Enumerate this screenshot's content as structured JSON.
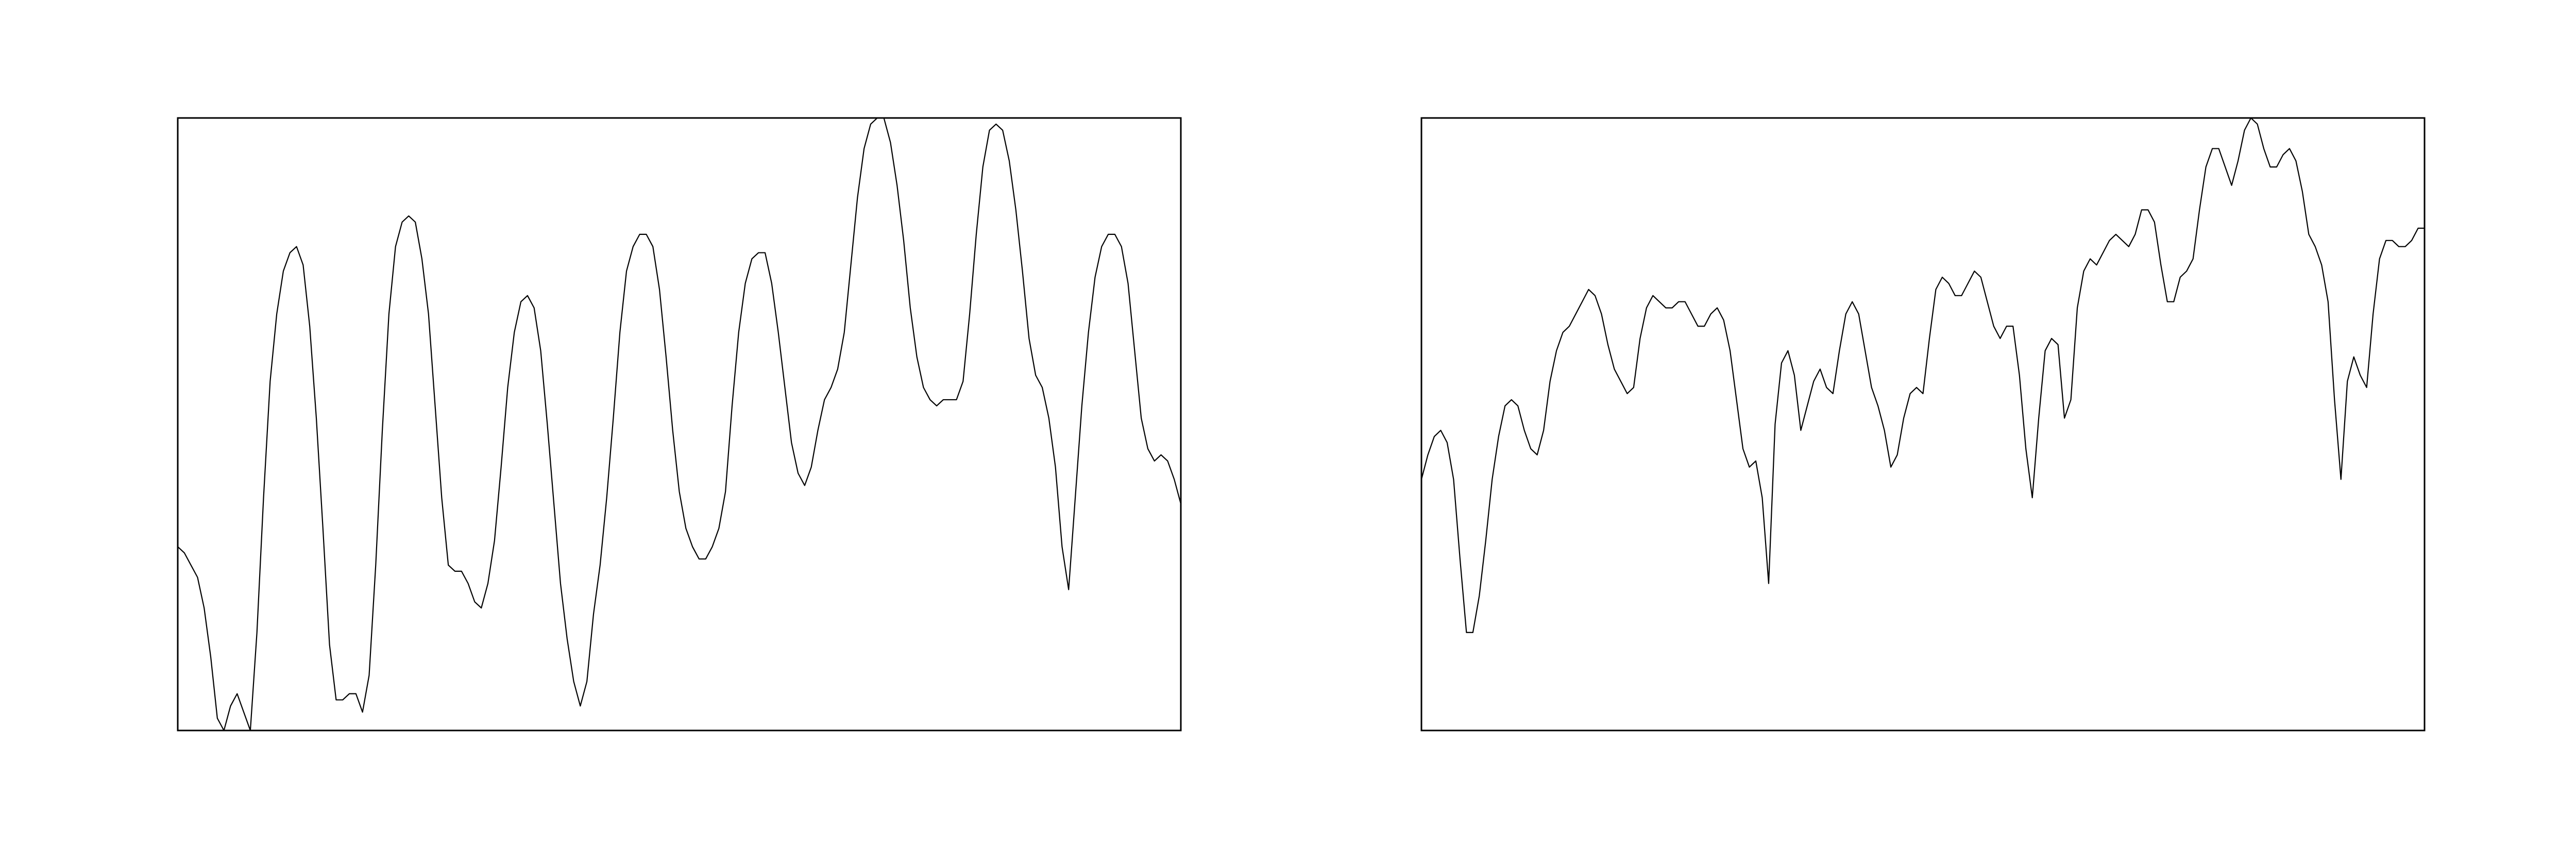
{
  "chart_data": [
    {
      "type": "line",
      "color": "#000000",
      "ylim": [
        0,
        1
      ],
      "values": [
        0.3,
        0.29,
        0.27,
        0.25,
        0.2,
        0.12,
        0.02,
        0.0,
        0.04,
        0.06,
        0.03,
        0.0,
        0.16,
        0.38,
        0.57,
        0.68,
        0.75,
        0.78,
        0.79,
        0.76,
        0.66,
        0.51,
        0.33,
        0.14,
        0.05,
        0.05,
        0.06,
        0.06,
        0.03,
        0.09,
        0.27,
        0.49,
        0.68,
        0.79,
        0.83,
        0.84,
        0.83,
        0.77,
        0.68,
        0.53,
        0.38,
        0.27,
        0.26,
        0.26,
        0.24,
        0.21,
        0.2,
        0.24,
        0.31,
        0.43,
        0.56,
        0.65,
        0.7,
        0.71,
        0.69,
        0.62,
        0.5,
        0.37,
        0.24,
        0.15,
        0.08,
        0.04,
        0.08,
        0.19,
        0.27,
        0.38,
        0.51,
        0.65,
        0.75,
        0.79,
        0.81,
        0.81,
        0.79,
        0.72,
        0.61,
        0.49,
        0.39,
        0.33,
        0.3,
        0.28,
        0.28,
        0.3,
        0.33,
        0.39,
        0.53,
        0.65,
        0.73,
        0.77,
        0.78,
        0.78,
        0.73,
        0.65,
        0.56,
        0.47,
        0.42,
        0.4,
        0.43,
        0.49,
        0.54,
        0.56,
        0.59,
        0.65,
        0.76,
        0.87,
        0.95,
        0.99,
        1.0,
        1.0,
        0.96,
        0.89,
        0.8,
        0.69,
        0.61,
        0.56,
        0.54,
        0.53,
        0.54,
        0.54,
        0.54,
        0.57,
        0.68,
        0.81,
        0.92,
        0.98,
        0.99,
        0.98,
        0.93,
        0.85,
        0.75,
        0.64,
        0.58,
        0.56,
        0.51,
        0.43,
        0.3,
        0.23,
        0.38,
        0.53,
        0.65,
        0.74,
        0.79,
        0.81,
        0.81,
        0.79,
        0.73,
        0.62,
        0.51,
        0.46,
        0.44,
        0.45,
        0.44,
        0.41,
        0.37
      ]
    },
    {
      "type": "line",
      "color": "#000000",
      "ylim": [
        0,
        1
      ],
      "values": [
        0.41,
        0.45,
        0.48,
        0.49,
        0.47,
        0.41,
        0.28,
        0.16,
        0.16,
        0.22,
        0.31,
        0.41,
        0.48,
        0.53,
        0.54,
        0.53,
        0.49,
        0.46,
        0.45,
        0.49,
        0.57,
        0.62,
        0.65,
        0.66,
        0.68,
        0.7,
        0.72,
        0.71,
        0.68,
        0.63,
        0.59,
        0.57,
        0.55,
        0.56,
        0.64,
        0.69,
        0.71,
        0.7,
        0.69,
        0.69,
        0.7,
        0.7,
        0.68,
        0.66,
        0.66,
        0.68,
        0.69,
        0.67,
        0.62,
        0.54,
        0.46,
        0.43,
        0.44,
        0.38,
        0.24,
        0.5,
        0.6,
        0.62,
        0.58,
        0.49,
        0.53,
        0.57,
        0.59,
        0.56,
        0.55,
        0.62,
        0.68,
        0.7,
        0.68,
        0.62,
        0.56,
        0.53,
        0.49,
        0.43,
        0.45,
        0.51,
        0.55,
        0.56,
        0.55,
        0.64,
        0.72,
        0.74,
        0.73,
        0.71,
        0.71,
        0.73,
        0.75,
        0.74,
        0.7,
        0.66,
        0.64,
        0.66,
        0.66,
        0.58,
        0.46,
        0.38,
        0.51,
        0.62,
        0.64,
        0.63,
        0.51,
        0.54,
        0.69,
        0.75,
        0.77,
        0.76,
        0.78,
        0.8,
        0.81,
        0.8,
        0.79,
        0.81,
        0.85,
        0.85,
        0.83,
        0.76,
        0.7,
        0.7,
        0.74,
        0.75,
        0.77,
        0.85,
        0.92,
        0.95,
        0.95,
        0.92,
        0.89,
        0.93,
        0.98,
        1.0,
        0.99,
        0.95,
        0.92,
        0.92,
        0.94,
        0.95,
        0.93,
        0.88,
        0.81,
        0.79,
        0.76,
        0.7,
        0.54,
        0.41,
        0.57,
        0.61,
        0.58,
        0.56,
        0.68,
        0.77,
        0.8,
        0.8,
        0.79,
        0.79,
        0.8,
        0.82,
        0.82
      ]
    }
  ]
}
